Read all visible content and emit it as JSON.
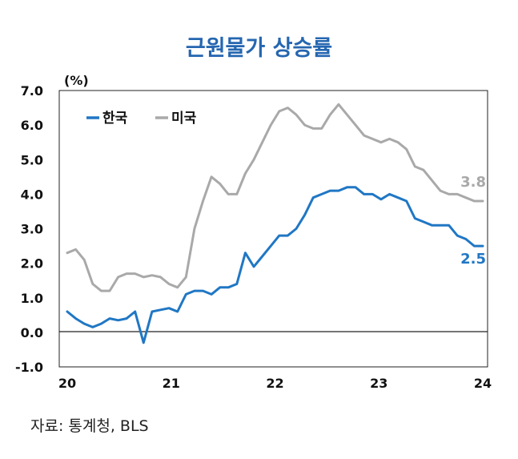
{
  "title": "근원물가 상승률",
  "source": "자료: 통계청, BLS",
  "chart_data": {
    "type": "line",
    "unit_label": "(%)",
    "ylim": [
      -1.0,
      7.0
    ],
    "y_ticks": [
      "7.0",
      "6.0",
      "5.0",
      "4.0",
      "3.0",
      "2.0",
      "1.0",
      "0.0",
      "-1.0"
    ],
    "x_ticks": [
      "20",
      "21",
      "22",
      "23",
      "24"
    ],
    "x_tick_values": [
      0,
      12,
      24,
      36,
      48
    ],
    "x_range": [
      0,
      48
    ],
    "grid": false,
    "zero_line": true,
    "legend_position": "top-left",
    "series": [
      {
        "name": "한국",
        "color": "#2077c4",
        "end_label": "2.5",
        "values": [
          0.6,
          0.4,
          0.25,
          0.15,
          0.25,
          0.4,
          0.35,
          0.4,
          0.6,
          -0.3,
          0.6,
          0.65,
          0.7,
          0.6,
          1.1,
          1.2,
          1.2,
          1.1,
          1.3,
          1.3,
          1.4,
          2.3,
          1.9,
          2.2,
          2.5,
          2.8,
          2.8,
          3.0,
          3.4,
          3.9,
          4.0,
          4.1,
          4.1,
          4.2,
          4.2,
          4.0,
          4.0,
          3.85,
          4.0,
          3.9,
          3.8,
          3.3,
          3.2,
          3.1,
          3.1,
          3.1,
          2.8,
          2.7,
          2.5,
          2.5
        ]
      },
      {
        "name": "미국",
        "color": "#a9a9a9",
        "end_label": "3.8",
        "values": [
          2.3,
          2.4,
          2.1,
          1.4,
          1.2,
          1.2,
          1.6,
          1.7,
          1.7,
          1.6,
          1.65,
          1.6,
          1.4,
          1.3,
          1.6,
          3.0,
          3.8,
          4.5,
          4.3,
          4.0,
          4.0,
          4.6,
          5.0,
          5.5,
          6.0,
          6.4,
          6.5,
          6.3,
          6.0,
          5.9,
          5.9,
          6.3,
          6.6,
          6.3,
          6.0,
          5.7,
          5.6,
          5.5,
          5.6,
          5.5,
          5.3,
          4.8,
          4.7,
          4.4,
          4.1,
          4.0,
          4.0,
          3.9,
          3.8,
          3.8
        ]
      }
    ]
  }
}
